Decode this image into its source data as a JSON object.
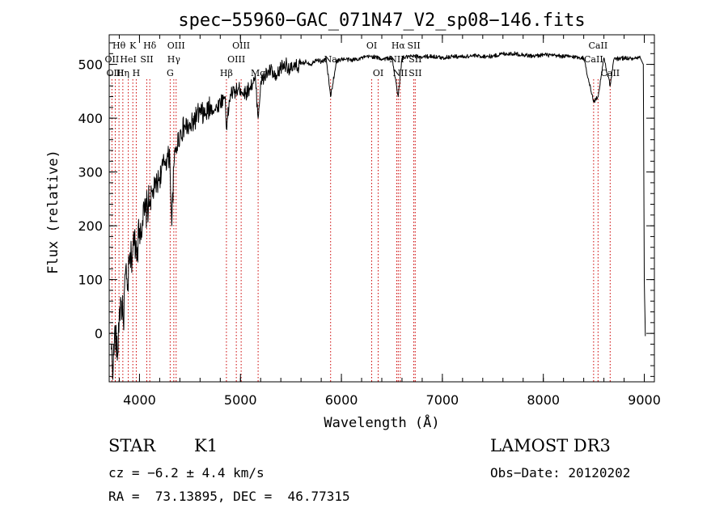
{
  "chart_data": {
    "type": "line",
    "title": "spec−55960−GAC_071N47_V2_sp08−146.fits",
    "xlabel": "Wavelength (Å)",
    "ylabel": "Flux (relative)",
    "xlim": [
      3700,
      9100
    ],
    "ylim": [
      -90,
      555
    ],
    "xticks": [
      4000,
      5000,
      6000,
      7000,
      8000,
      9000
    ],
    "yticks": [
      0,
      100,
      200,
      300,
      400,
      500
    ],
    "series": [
      {
        "name": "flux",
        "x": [
          3720,
          3740,
          3760,
          3780,
          3800,
          3820,
          3840,
          3860,
          3880,
          3900,
          3920,
          3950,
          3980,
          4000,
          4030,
          4060,
          4100,
          4150,
          4200,
          4250,
          4300,
          4320,
          4340,
          4360,
          4400,
          4450,
          4500,
          4550,
          4600,
          4650,
          4700,
          4750,
          4800,
          4850,
          4861,
          4900,
          4950,
          5000,
          5050,
          5100,
          5150,
          5175,
          5200,
          5250,
          5300,
          5350,
          5400,
          5450,
          5500,
          5550,
          5600,
          5650,
          5700,
          5750,
          5800,
          5850,
          5893,
          5950,
          6000,
          6100,
          6200,
          6300,
          6400,
          6500,
          6563,
          6600,
          6700,
          6800,
          6900,
          7000,
          7100,
          7200,
          7300,
          7400,
          7500,
          7600,
          7700,
          7800,
          7900,
          8000,
          8100,
          8200,
          8300,
          8400,
          8498,
          8542,
          8600,
          8662,
          8700,
          8800,
          8900,
          8960,
          8990,
          9000,
          9010
        ],
        "y": [
          -30,
          -60,
          10,
          -50,
          40,
          60,
          20,
          110,
          80,
          130,
          140,
          175,
          160,
          195,
          210,
          225,
          245,
          270,
          290,
          320,
          330,
          200,
          310,
          345,
          370,
          385,
          380,
          400,
          410,
          405,
          420,
          415,
          430,
          440,
          380,
          445,
          450,
          455,
          445,
          460,
          470,
          400,
          465,
          480,
          490,
          470,
          495,
          500,
          490,
          495,
          500,
          505,
          500,
          510,
          505,
          510,
          440,
          505,
          510,
          508,
          512,
          515,
          510,
          512,
          440,
          512,
          515,
          514,
          515,
          512,
          515,
          514,
          516,
          515,
          515,
          520,
          520,
          518,
          515,
          518,
          516,
          515,
          514,
          512,
          430,
          440,
          512,
          460,
          510,
          512,
          510,
          512,
          500,
          100,
          -5
        ]
      }
    ],
    "spectral_lines": [
      {
        "label": "Hθ",
        "x": 3797,
        "row": 0
      },
      {
        "label": "OII",
        "x": 3727,
        "row": 1
      },
      {
        "label": "OIII",
        "x": 3760,
        "row": 2
      },
      {
        "label": "Hη",
        "x": 3835,
        "row": 2
      },
      {
        "label": "K",
        "x": 3934,
        "row": 0
      },
      {
        "label": "HeI",
        "x": 3889,
        "row": 1
      },
      {
        "label": "H",
        "x": 3968,
        "row": 2
      },
      {
        "label": "SII",
        "x": 4072,
        "row": 1
      },
      {
        "label": "Hδ",
        "x": 4102,
        "row": 0
      },
      {
        "label": "OIII",
        "x": 4363,
        "row": 0
      },
      {
        "label": "Hγ",
        "x": 4340,
        "row": 1
      },
      {
        "label": "G",
        "x": 4304,
        "row": 2
      },
      {
        "label": "Hβ",
        "x": 4861,
        "row": 2
      },
      {
        "label": "OIII",
        "x": 5007,
        "row": 0
      },
      {
        "label": "OIII",
        "x": 4959,
        "row": 1
      },
      {
        "label": "Mg",
        "x": 5175,
        "row": 2
      },
      {
        "label": "Na",
        "x": 5893,
        "row": 1
      },
      {
        "label": "OI",
        "x": 6300,
        "row": 0
      },
      {
        "label": "OI",
        "x": 6364,
        "row": 2
      },
      {
        "label": "Hα",
        "x": 6563,
        "row": 0
      },
      {
        "label": "NII",
        "x": 6548,
        "row": 1
      },
      {
        "label": "NII",
        "x": 6583,
        "row": 2
      },
      {
        "label": "SII",
        "x": 6717,
        "row": 0
      },
      {
        "label": "SII",
        "x": 6731,
        "row": 1
      },
      {
        "label": "SII",
        "x": 6731,
        "row": 2
      },
      {
        "label": "CaII",
        "x": 8498,
        "row": 1
      },
      {
        "label": "CaII",
        "x": 8542,
        "row": 0
      },
      {
        "label": "CaII",
        "x": 8662,
        "row": 2
      }
    ]
  },
  "info": {
    "class_label": "STAR",
    "subclass": "K1",
    "cz": "cz = −6.2 ± 4.4 km/s",
    "radec": "RA =  73.13895, DEC =  46.77315",
    "survey": "LAMOST DR3",
    "obs_date": "Obs−Date: 20120202"
  },
  "colors": {
    "spectrum": "#000000",
    "line_marker": "#cc0000",
    "axes": "#000000"
  }
}
